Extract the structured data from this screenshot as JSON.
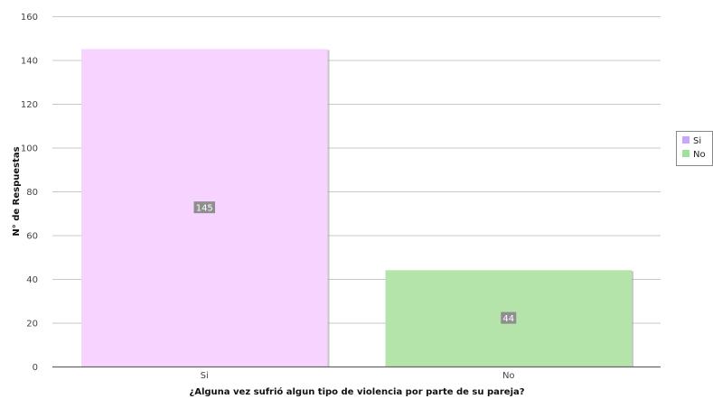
{
  "chart_data": {
    "type": "bar",
    "categories": [
      "Si",
      "No"
    ],
    "values": [
      145,
      44
    ],
    "colors": [
      "#f7d3ff",
      "#b4e4a9"
    ],
    "legend_colors": [
      "#c9a5ff",
      "#9fe09a"
    ],
    "xlabel": "¿Alguna vez sufrió algun tipo de violencia por parte de su pareja?",
    "ylabel": "N° de Respuestas",
    "ylim": [
      0,
      160
    ],
    "yticks": [
      0,
      20,
      40,
      60,
      80,
      100,
      120,
      140,
      160
    ],
    "grid": true,
    "legend_position": "right",
    "legend": [
      "Si",
      "No"
    ]
  }
}
